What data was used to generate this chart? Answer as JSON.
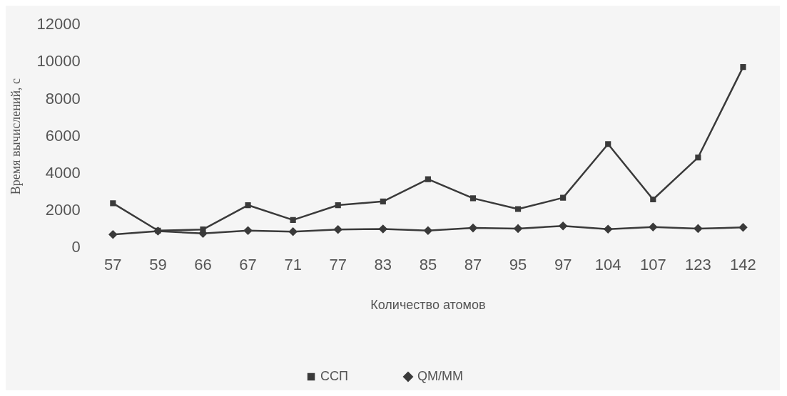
{
  "chart_data": {
    "type": "line",
    "xlabel": "Количество атомов",
    "ylabel": "Время вычислений, с",
    "categories": [
      "57",
      "59",
      "66",
      "67",
      "71",
      "77",
      "83",
      "85",
      "87",
      "95",
      "97",
      "104",
      "107",
      "123",
      "142"
    ],
    "series": [
      {
        "name": "ССП",
        "color": "#3a3a3a",
        "marker": "square",
        "values": [
          2400,
          930,
          990,
          2300,
          1500,
          2300,
          2500,
          3700,
          2670,
          2090,
          2700,
          5590,
          2610,
          4870,
          9740
        ]
      },
      {
        "name": "QM/MM",
        "color": "#3a3a3a",
        "marker": "diamond",
        "values": [
          720,
          900,
          780,
          930,
          870,
          990,
          1020,
          930,
          1070,
          1040,
          1180,
          1010,
          1120,
          1040,
          1100
        ]
      }
    ],
    "ylim": [
      0,
      12000
    ],
    "yticks": [
      0,
      2000,
      4000,
      6000,
      8000,
      10000,
      12000
    ],
    "grid": false,
    "legend": "bottom"
  }
}
